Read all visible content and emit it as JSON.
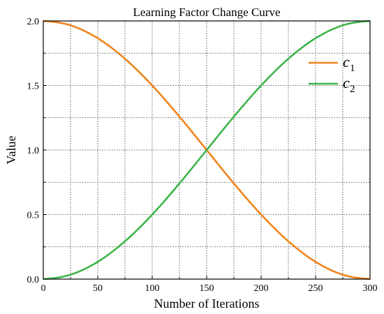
{
  "chart_data": {
    "type": "line",
    "title": "Learning Factor Change Curve",
    "xlabel": "Number of Iterations",
    "ylabel": "Value",
    "xlim": [
      0,
      300
    ],
    "ylim": [
      0,
      2.0
    ],
    "xticks": [
      0,
      50,
      100,
      150,
      200,
      250,
      300
    ],
    "xtick_labels": [
      "0",
      "50",
      "100",
      "150",
      "200",
      "250",
      "300"
    ],
    "yticks": [
      0,
      0.5,
      1.0,
      1.5,
      2.0
    ],
    "ytick_labels": [
      "0.0",
      "0.5",
      "1.0",
      "1.5",
      "2.0"
    ],
    "grid": true,
    "legend_position": "top-right",
    "series": [
      {
        "name": "c",
        "subscript": "1",
        "color": "#f0841c",
        "x": [
          0,
          25,
          50,
          75,
          100,
          125,
          150,
          175,
          200,
          225,
          250,
          275,
          300
        ],
        "y": [
          2.0,
          1.966,
          1.866,
          1.707,
          1.5,
          1.259,
          1.0,
          0.741,
          0.5,
          0.293,
          0.134,
          0.034,
          0.0
        ]
      },
      {
        "name": "c",
        "subscript": "2",
        "color": "#3db54a",
        "x": [
          0,
          25,
          50,
          75,
          100,
          125,
          150,
          175,
          200,
          225,
          250,
          275,
          300
        ],
        "y": [
          0.0,
          0.034,
          0.134,
          0.293,
          0.5,
          0.741,
          1.0,
          1.259,
          1.5,
          1.707,
          1.866,
          1.966,
          2.0
        ]
      }
    ]
  }
}
